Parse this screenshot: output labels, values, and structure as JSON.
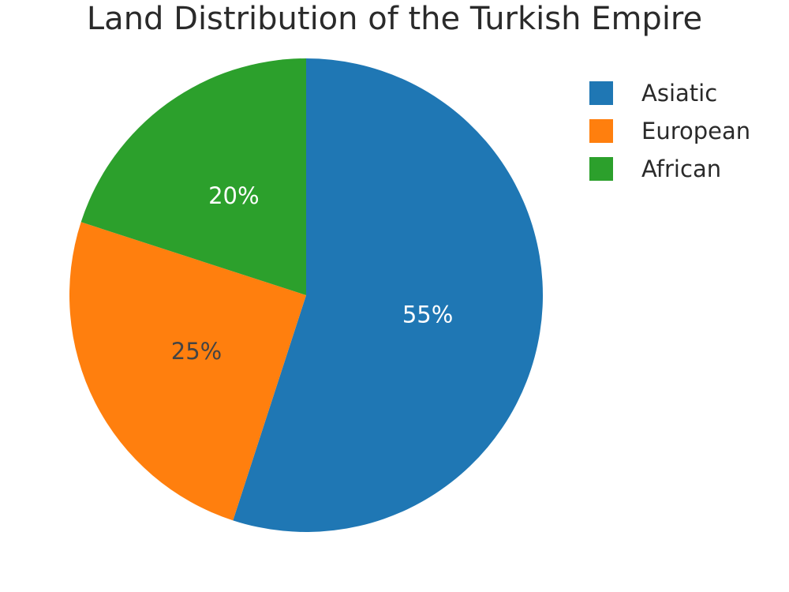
{
  "chart_data": {
    "type": "pie",
    "title": "Land Distribution of the Turkish Empire",
    "labels": [
      "Asiatic",
      "European",
      "African"
    ],
    "values": [
      55,
      25,
      20
    ],
    "value_labels": [
      "55%",
      "25%",
      "20%"
    ],
    "colors": [
      "#1f77b4",
      "#ff7f0e",
      "#2ca02c"
    ],
    "label_colors": [
      "#ffffff",
      "#444444",
      "#ffffff"
    ],
    "direction": "clockwise",
    "start_angle": "top",
    "legend_position": "top-right"
  }
}
